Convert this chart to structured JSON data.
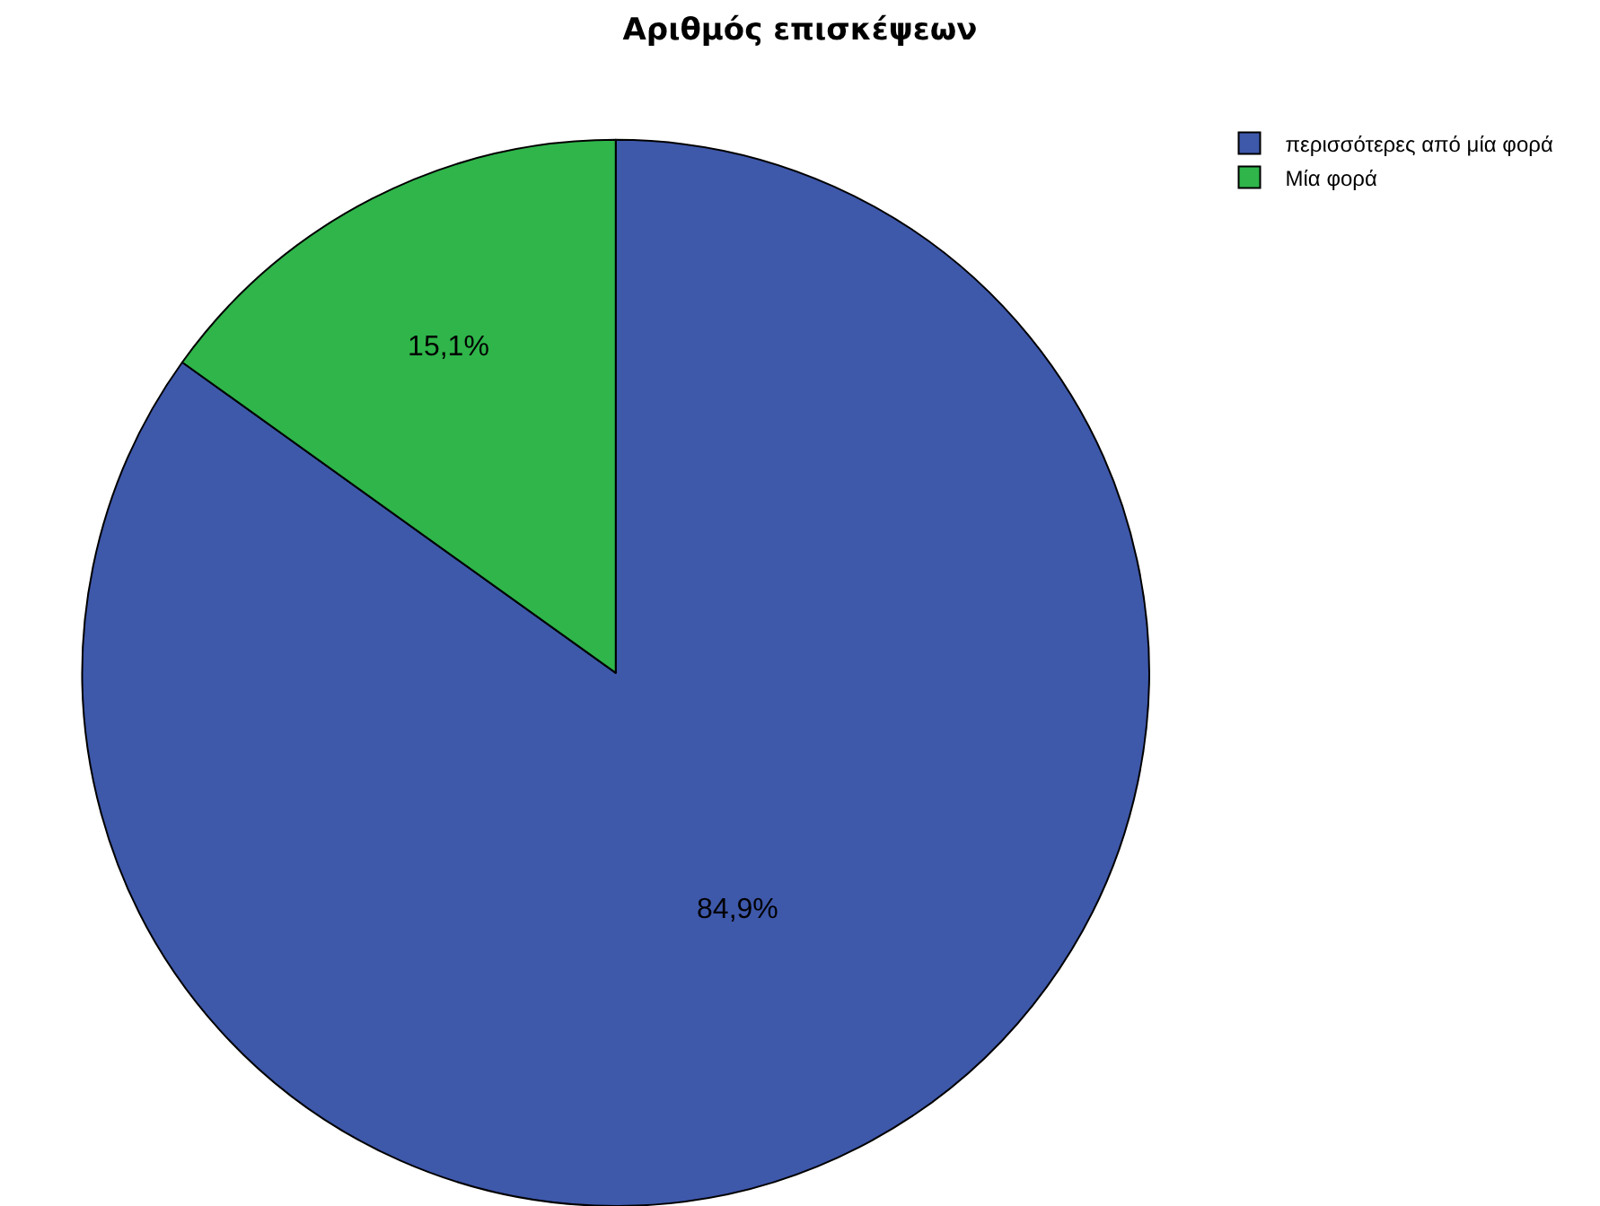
{
  "chart_data": {
    "type": "pie",
    "title": "Αριθμός επισκέψεων",
    "categories": [
      "περισσότερες από μία φορά",
      "Μία φορά"
    ],
    "values": [
      84.9,
      15.1
    ],
    "colors": [
      "#3e58aa",
      "#2fb54a"
    ],
    "value_labels": [
      "84,9%",
      "15,1%"
    ],
    "legend": "top right"
  }
}
